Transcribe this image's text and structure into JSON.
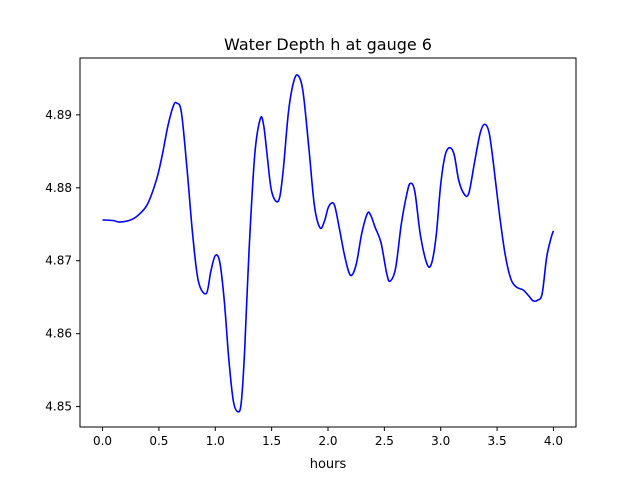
{
  "chart_data": {
    "type": "line",
    "title": "Water Depth h at gauge 6",
    "xlabel": "hours",
    "ylabel": "",
    "xlim": [
      -0.2,
      4.2
    ],
    "ylim": [
      4.8472,
      4.8978
    ],
    "xticks": [
      0.0,
      0.5,
      1.0,
      1.5,
      2.0,
      2.5,
      3.0,
      3.5,
      4.0
    ],
    "xtick_labels": [
      "0.0",
      "0.5",
      "1.0",
      "1.5",
      "2.0",
      "2.5",
      "3.0",
      "3.5",
      "4.0"
    ],
    "yticks": [
      4.85,
      4.86,
      4.87,
      4.88,
      4.89
    ],
    "ytick_labels": [
      "4.85",
      "4.86",
      "4.87",
      "4.88",
      "4.89"
    ],
    "grid": false,
    "series": [
      {
        "color": "#0000ff",
        "x": [
          0.0,
          0.1,
          0.15,
          0.25,
          0.32,
          0.4,
          0.48,
          0.53,
          0.58,
          0.63,
          0.66,
          0.7,
          0.75,
          0.8,
          0.85,
          0.92,
          0.96,
          1.0,
          1.04,
          1.08,
          1.12,
          1.16,
          1.2,
          1.23,
          1.26,
          1.3,
          1.35,
          1.4,
          1.43,
          1.46,
          1.5,
          1.56,
          1.6,
          1.65,
          1.7,
          1.74,
          1.78,
          1.83,
          1.88,
          1.93,
          1.97,
          2.0,
          2.03,
          2.06,
          2.1,
          2.15,
          2.2,
          2.25,
          2.3,
          2.35,
          2.38,
          2.42,
          2.47,
          2.52,
          2.55,
          2.6,
          2.65,
          2.7,
          2.73,
          2.77,
          2.82,
          2.88,
          2.92,
          2.96,
          3.0,
          3.04,
          3.08,
          3.12,
          3.16,
          3.21,
          3.25,
          3.3,
          3.35,
          3.39,
          3.43,
          3.47,
          3.52,
          3.57,
          3.62,
          3.67,
          3.73,
          3.78,
          3.82,
          3.86,
          3.9,
          3.94,
          3.98,
          4.0
        ],
        "y": [
          4.8756,
          4.8755,
          4.8753,
          4.8756,
          4.8763,
          4.8778,
          4.8812,
          4.8845,
          4.8885,
          4.8913,
          4.8916,
          4.8903,
          4.8825,
          4.8735,
          4.8672,
          4.8655,
          4.8685,
          4.8707,
          4.8698,
          4.8645,
          4.8565,
          4.8508,
          4.8493,
          4.8505,
          4.8575,
          4.8715,
          4.8845,
          4.8895,
          4.8885,
          4.8845,
          4.8795,
          4.8782,
          4.882,
          4.8905,
          4.8948,
          4.8953,
          4.893,
          4.8855,
          4.8775,
          4.8745,
          4.8755,
          4.8772,
          4.8779,
          4.8775,
          4.8745,
          4.8705,
          4.868,
          4.8695,
          4.8738,
          4.8765,
          4.8762,
          4.8745,
          4.8725,
          4.8683,
          4.8672,
          4.869,
          4.875,
          4.8792,
          4.8806,
          4.8795,
          4.8735,
          4.8695,
          4.8697,
          4.8735,
          4.8805,
          4.8845,
          4.8855,
          4.8845,
          4.881,
          4.8791,
          4.8793,
          4.8835,
          4.8875,
          4.8887,
          4.8875,
          4.883,
          4.8765,
          4.871,
          4.8676,
          4.8664,
          4.866,
          4.8652,
          4.8645,
          4.8646,
          4.8655,
          4.8705,
          4.8732,
          4.8741
        ]
      }
    ]
  }
}
